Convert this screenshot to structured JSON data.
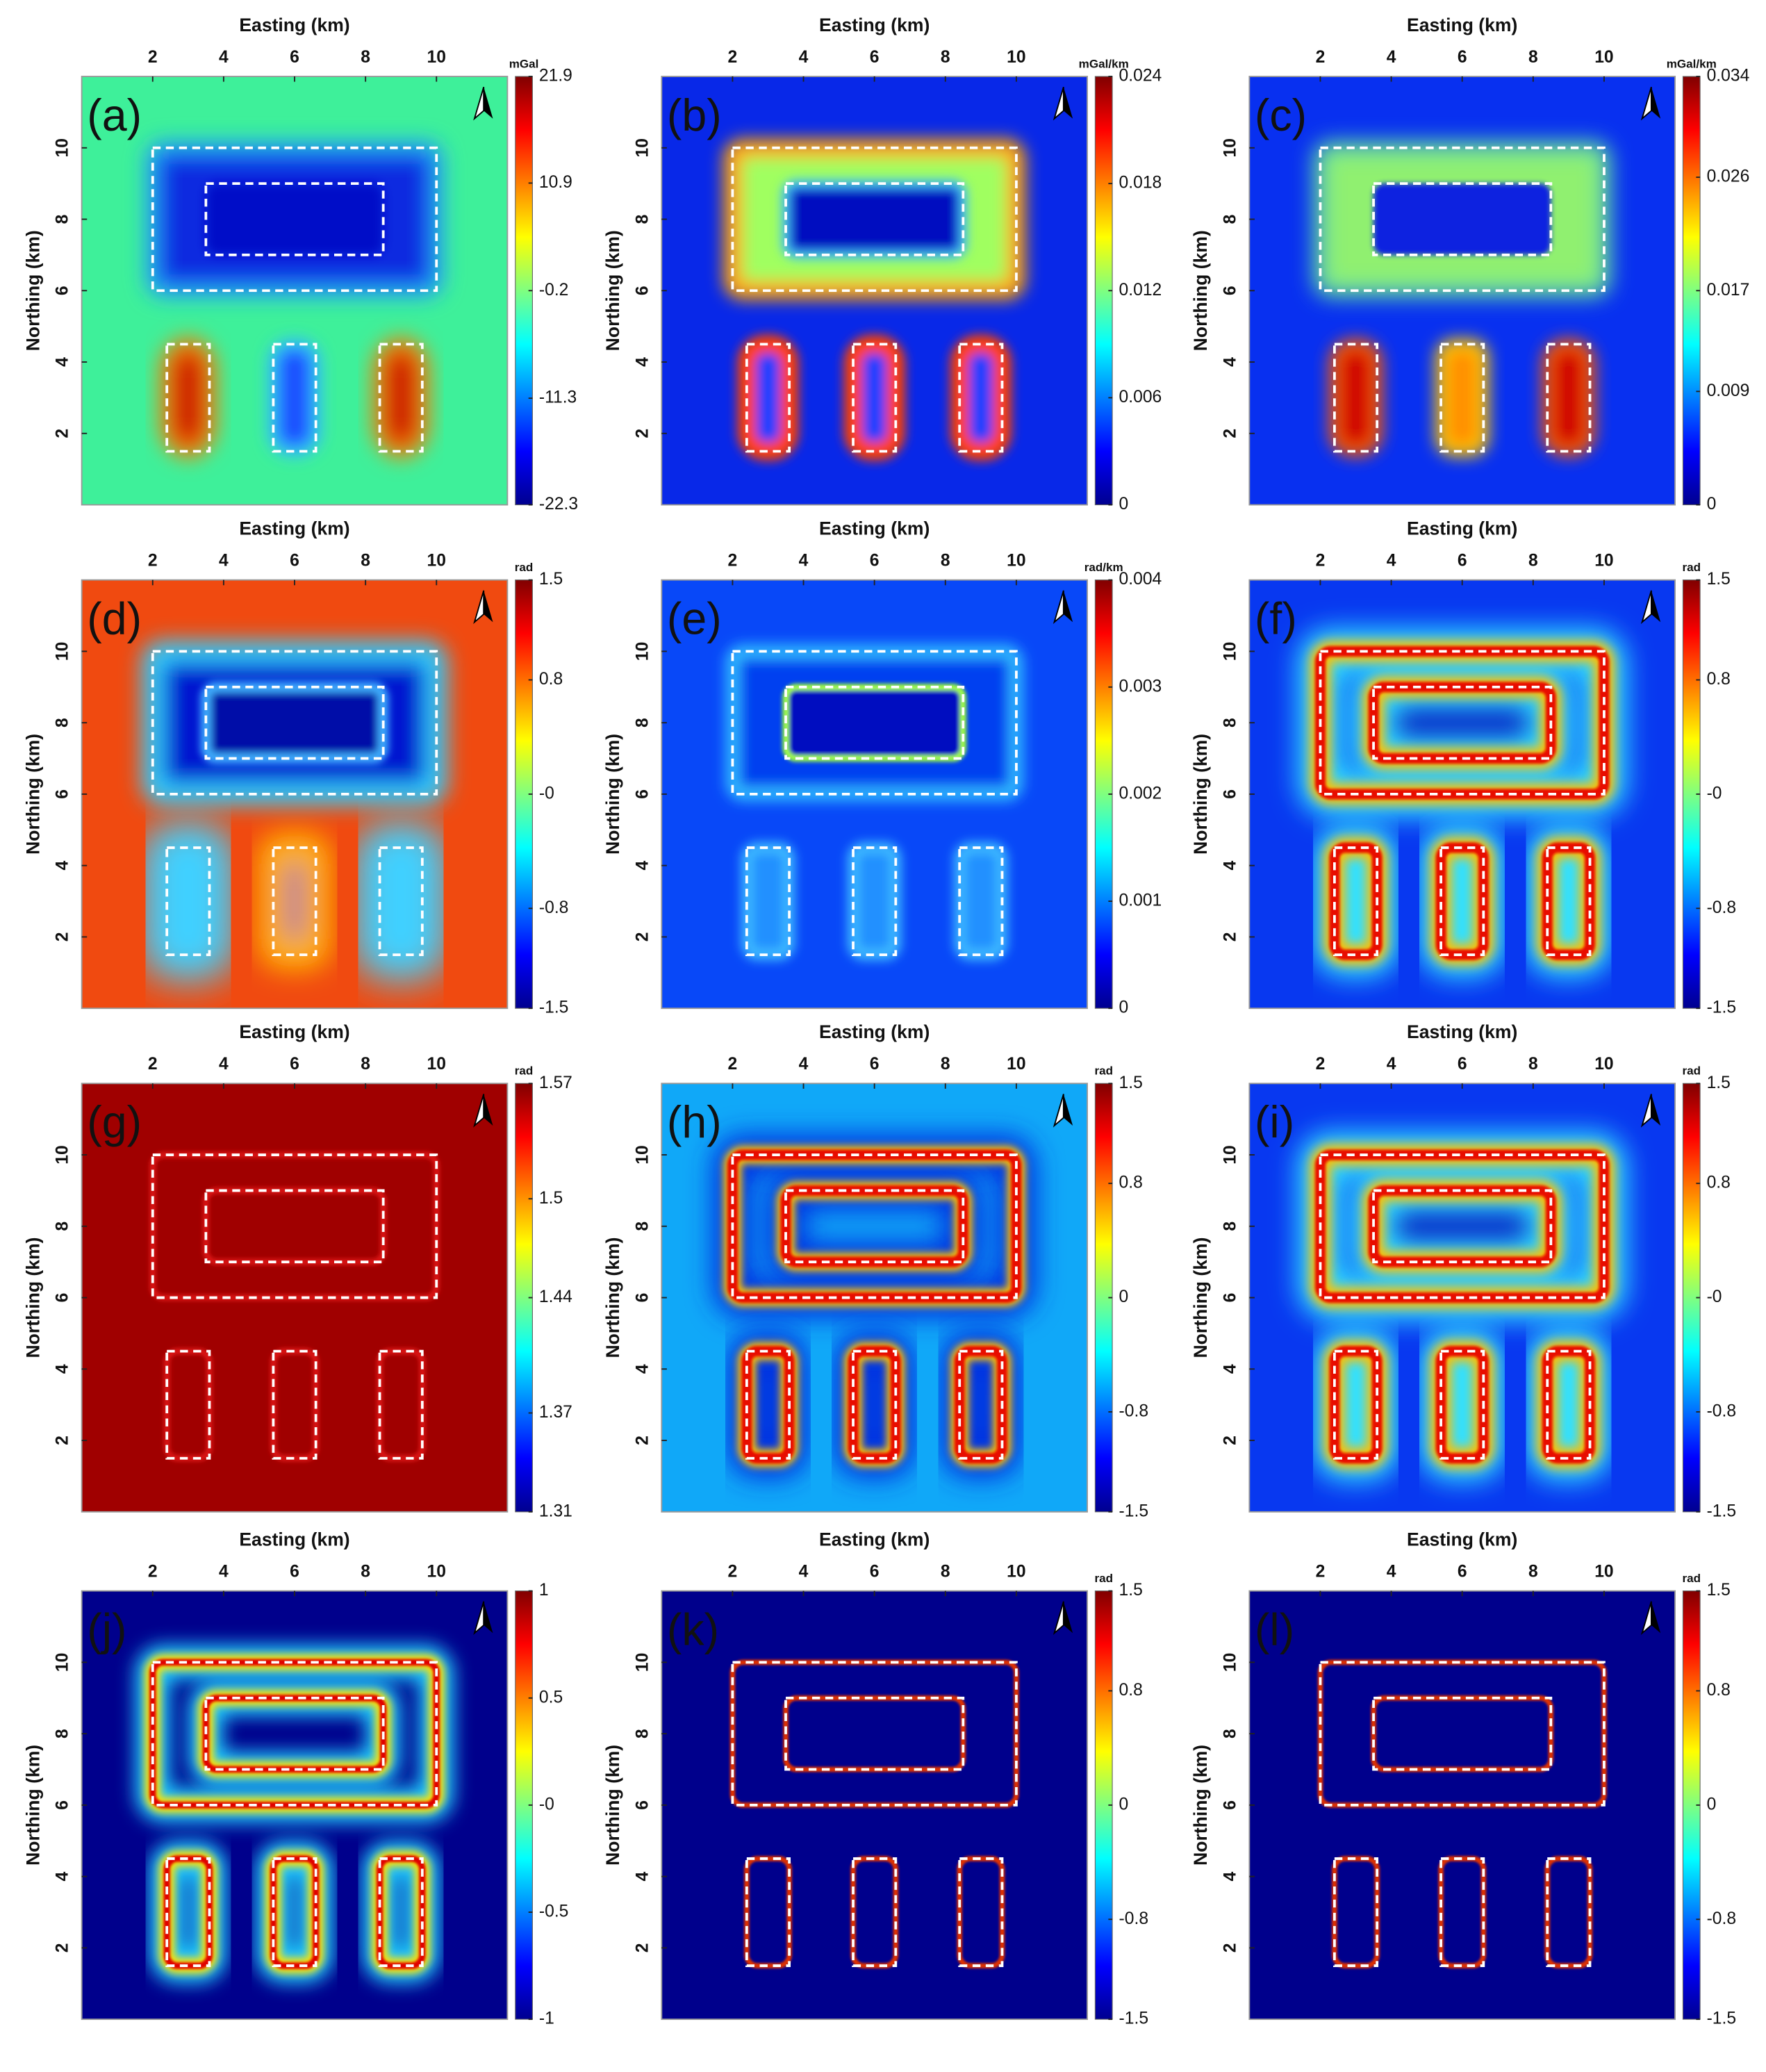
{
  "chart_data": [
    {
      "type": "heatmap",
      "panel_label": "(a)",
      "xlabel": "Easting (km)",
      "ylabel": "Northing (km)",
      "xlim": [
        0,
        12
      ],
      "ylim": [
        0,
        12
      ],
      "xticks": [
        2,
        4,
        6,
        8,
        10
      ],
      "yticks": [
        2,
        4,
        6,
        8,
        10
      ],
      "colorbar_label": "mGal",
      "clim": [
        -22.3,
        21.9
      ],
      "colorbar_ticks": [
        -22.3,
        -11.3,
        -0.2,
        10.9,
        21.9
      ]
    },
    {
      "type": "heatmap",
      "panel_label": "(b)",
      "xlabel": "Easting (km)",
      "ylabel": "Northing (km)",
      "xlim": [
        0,
        12
      ],
      "ylim": [
        0,
        12
      ],
      "xticks": [
        2,
        4,
        6,
        8,
        10
      ],
      "yticks": [
        2,
        4,
        6,
        8,
        10
      ],
      "colorbar_label": "mGal/km",
      "clim": [
        0,
        0.024
      ],
      "colorbar_ticks": [
        0,
        0.006,
        0.012,
        0.018,
        0.024
      ]
    },
    {
      "type": "heatmap",
      "panel_label": "(c)",
      "xlabel": "Easting (km)",
      "ylabel": "Northing (km)",
      "xlim": [
        0,
        12
      ],
      "ylim": [
        0,
        12
      ],
      "xticks": [
        2,
        4,
        6,
        8,
        10
      ],
      "yticks": [
        2,
        4,
        6,
        8,
        10
      ],
      "colorbar_label": "mGal/km",
      "clim": [
        0,
        0.034
      ],
      "colorbar_ticks": [
        0,
        0.009,
        0.017,
        0.026,
        0.034
      ]
    },
    {
      "type": "heatmap",
      "panel_label": "(d)",
      "xlabel": "Easting (km)",
      "ylabel": "Northing (km)",
      "xlim": [
        0,
        12
      ],
      "ylim": [
        0,
        12
      ],
      "xticks": [
        2,
        4,
        6,
        8,
        10
      ],
      "yticks": [
        2,
        4,
        6,
        8,
        10
      ],
      "colorbar_label": "rad",
      "clim": [
        -1.5,
        1.5
      ],
      "colorbar_ticks": [
        -1.5,
        -0.8,
        {
          "value": 0,
          "label": "-0"
        },
        0.8,
        1.5
      ]
    },
    {
      "type": "heatmap",
      "panel_label": "(e)",
      "xlabel": "Easting (km)",
      "ylabel": "Northing (km)",
      "xlim": [
        0,
        12
      ],
      "ylim": [
        0,
        12
      ],
      "xticks": [
        2,
        4,
        6,
        8,
        10
      ],
      "yticks": [
        2,
        4,
        6,
        8,
        10
      ],
      "colorbar_label": "rad/km",
      "clim": [
        0,
        0.004
      ],
      "colorbar_ticks": [
        0,
        0.001,
        0.002,
        0.003,
        0.004
      ]
    },
    {
      "type": "heatmap",
      "panel_label": "(f)",
      "xlabel": "Easting (km)",
      "ylabel": "Northing (km)",
      "xlim": [
        0,
        12
      ],
      "ylim": [
        0,
        12
      ],
      "xticks": [
        2,
        4,
        6,
        8,
        10
      ],
      "yticks": [
        2,
        4,
        6,
        8,
        10
      ],
      "colorbar_label": "rad",
      "clim": [
        -1.5,
        1.5
      ],
      "colorbar_ticks": [
        -1.5,
        -0.8,
        {
          "value": 0,
          "label": "-0"
        },
        0.8,
        1.5
      ]
    },
    {
      "type": "heatmap",
      "panel_label": "(g)",
      "xlabel": "Easting (km)",
      "ylabel": "Northing (km)",
      "xlim": [
        0,
        12
      ],
      "ylim": [
        0,
        12
      ],
      "xticks": [
        2,
        4,
        6,
        8,
        10
      ],
      "yticks": [
        2,
        4,
        6,
        8,
        10
      ],
      "colorbar_label": "rad",
      "clim": [
        1.31,
        1.57
      ],
      "colorbar_ticks": [
        1.31,
        1.37,
        1.44,
        1.5,
        1.57
      ]
    },
    {
      "type": "heatmap",
      "panel_label": "(h)",
      "xlabel": "Easting (km)",
      "ylabel": "Northing (km)",
      "xlim": [
        0,
        12
      ],
      "ylim": [
        0,
        12
      ],
      "xticks": [
        2,
        4,
        6,
        8,
        10
      ],
      "yticks": [
        2,
        4,
        6,
        8,
        10
      ],
      "colorbar_label": "rad",
      "clim": [
        -1.5,
        1.5
      ],
      "colorbar_ticks": [
        -1.5,
        -0.8,
        0,
        0.8,
        1.5
      ]
    },
    {
      "type": "heatmap",
      "panel_label": "(i)",
      "xlabel": "Easting (km)",
      "ylabel": "Northing (km)",
      "xlim": [
        0,
        12
      ],
      "ylim": [
        0,
        12
      ],
      "xticks": [
        2,
        4,
        6,
        8,
        10
      ],
      "yticks": [
        2,
        4,
        6,
        8,
        10
      ],
      "colorbar_label": "rad",
      "clim": [
        -1.5,
        1.5
      ],
      "colorbar_ticks": [
        -1.5,
        -0.8,
        {
          "value": 0,
          "label": "-0"
        },
        0.8,
        1.5
      ]
    },
    {
      "type": "heatmap",
      "panel_label": "(j)",
      "xlabel": "Easting (km)",
      "ylabel": "Northing (km)",
      "xlim": [
        0,
        12
      ],
      "ylim": [
        0,
        12
      ],
      "xticks": [
        2,
        4,
        6,
        8,
        10
      ],
      "yticks": [
        2,
        4,
        6,
        8,
        10
      ],
      "clim": [
        -1,
        1
      ],
      "colorbar_ticks": [
        -1,
        -0.5,
        {
          "value": 0,
          "label": "-0"
        },
        0.5,
        1
      ]
    },
    {
      "type": "heatmap",
      "panel_label": "(k)",
      "xlabel": "Easting (km)",
      "ylabel": "Northing (km)",
      "xlim": [
        0,
        12
      ],
      "ylim": [
        0,
        12
      ],
      "xticks": [
        2,
        4,
        6,
        8,
        10
      ],
      "yticks": [
        2,
        4,
        6,
        8,
        10
      ],
      "colorbar_label": "rad",
      "clim": [
        -1.5,
        1.5
      ],
      "colorbar_ticks": [
        -1.5,
        -0.8,
        0,
        0.8,
        1.5
      ]
    },
    {
      "type": "heatmap",
      "panel_label": "(l)",
      "xlabel": "Easting (km)",
      "ylabel": "Northing (km)",
      "xlim": [
        0,
        12
      ],
      "ylim": [
        0,
        12
      ],
      "xticks": [
        2,
        4,
        6,
        8,
        10
      ],
      "yticks": [
        2,
        4,
        6,
        8,
        10
      ],
      "colorbar_label": "rad",
      "clim": [
        -1.5,
        1.5
      ],
      "colorbar_ticks": [
        -1.5,
        -0.8,
        0,
        0.8,
        1.5
      ]
    }
  ]
}
